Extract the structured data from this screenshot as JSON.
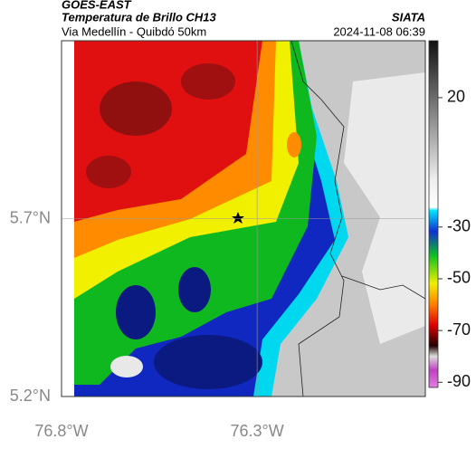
{
  "header": {
    "source": "GOES-EAST",
    "title": "Temperatura de Brillo CH13",
    "brand": "SIATA",
    "subtitle": "Via Medellín - Quibdó 50km",
    "timestamp": "2024-11-08 06:39"
  },
  "map": {
    "xlim": [
      -76.8,
      -75.87
    ],
    "ylim": [
      5.2,
      6.2
    ],
    "xticks": [
      {
        "value": -76.8,
        "label": "76.8°W"
      },
      {
        "value": -76.3,
        "label": "76.3°W"
      }
    ],
    "yticks": [
      {
        "value": 5.2,
        "label": "5.2°N"
      },
      {
        "value": 5.7,
        "label": "5.7°N"
      }
    ]
  },
  "colorbar": {
    "lim": [
      -92,
      42
    ],
    "ticks": [
      20,
      -30,
      -50,
      -70,
      -90
    ]
  }
}
